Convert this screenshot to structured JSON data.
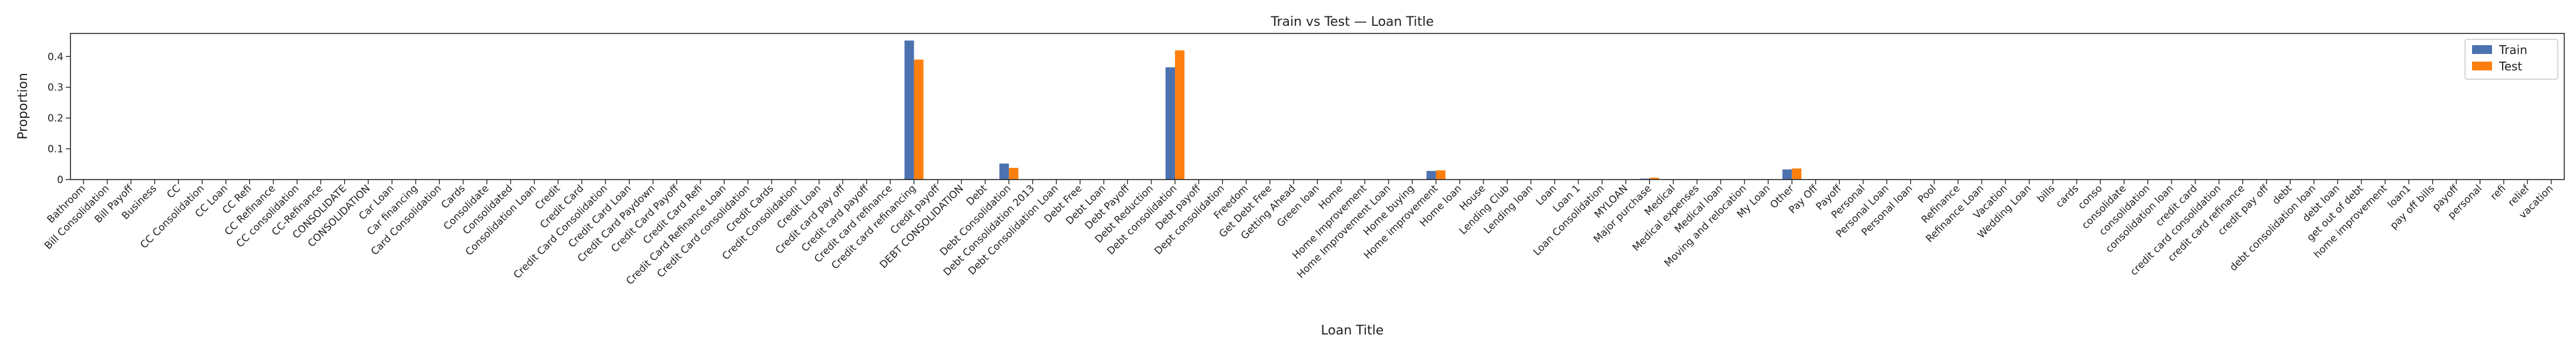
{
  "chart_data": {
    "type": "bar",
    "title": "Train vs Test — Loan Title",
    "xlabel": "Loan Title",
    "ylabel": "Proportion",
    "ylim": [
      0,
      0.475
    ],
    "yticks": [
      0.0,
      0.1,
      0.2,
      0.3,
      0.4
    ],
    "grid": false,
    "legend_position": "top-right",
    "colors": {
      "Train": "#4c72b0",
      "Test": "#ff7f0e",
      "axis": "#222222"
    },
    "categories": [
      "Bathroom",
      "Bill Consolidation",
      "Bill Payoff",
      "Business",
      "CC",
      "CC Consolidation",
      "CC Loan",
      "CC Refi",
      "CC Refinance",
      "CC consolidation",
      "CC-Refinance",
      "CONSOLIDATE",
      "CONSOLIDATION",
      "Car Loan",
      "Car financing",
      "Card Consolidation",
      "Cards",
      "Consolidate",
      "Consolidated",
      "Consolidation Loan",
      "Credit",
      "Credit Card",
      "Credit Card Consolidation",
      "Credit Card Loan",
      "Credit Card Paydown",
      "Credit Card Payoff",
      "Credit Card Refi",
      "Credit Card Refinance Loan",
      "Credit Card consolidation",
      "Credit Cards",
      "Credit Consolidation",
      "Credit Loan",
      "Credit card pay off",
      "Credit card payoff",
      "Credit card refinance",
      "Credit card refinancing",
      "Credit payoff",
      "DEBT CONSOLIDATION",
      "Debt",
      "Debt Consolidation",
      "Debt Consolidation 2013",
      "Debt Consolidation Loan",
      "Debt Free",
      "Debt Loan",
      "Debt Payoff",
      "Debt Reduction",
      "Debt consolidation",
      "Debt payoff",
      "Dept consolidation",
      "Freedom",
      "Get Debt Free",
      "Getting Ahead",
      "Green loan",
      "Home",
      "Home Improvement",
      "Home Improvement Loan",
      "Home buying",
      "Home improvement",
      "Home loan",
      "House",
      "Lending Club",
      "Lending loan",
      "Loan",
      "Loan 1",
      "Loan Consolidation",
      "MYLOAN",
      "Major purchase",
      "Medical",
      "Medical expenses",
      "Medical loan",
      "Moving and relocation",
      "My Loan",
      "Other",
      "Pay Off",
      "Payoff",
      "Personal",
      "Personal Loan",
      "Personal loan",
      "Pool",
      "Refinance",
      "Refinance Loan",
      "Vacation",
      "Wedding Loan",
      "bills",
      "cards",
      "conso",
      "consolidate",
      "consolidation",
      "consolidation loan",
      "credit card",
      "credit card consolidation",
      "credit card refinance",
      "credit pay off",
      "debt",
      "debt consolidation loan",
      "debt loan",
      "get out of debt",
      "home improvement",
      "loan1",
      "pay off bills",
      "payoff",
      "personal",
      "refi",
      "relief",
      "vacation"
    ],
    "series": [
      {
        "name": "Train",
        "values": [
          0,
          0,
          0,
          0,
          0,
          0,
          0,
          0,
          0,
          0,
          0,
          0,
          0,
          0,
          0,
          0,
          0,
          0,
          0,
          0,
          0,
          0,
          0,
          0,
          0,
          0,
          0,
          0,
          0,
          0,
          0,
          0,
          0,
          0,
          0,
          0.452,
          0,
          0,
          0,
          0.052,
          0,
          0,
          0,
          0,
          0,
          0,
          0.365,
          0,
          0,
          0,
          0,
          0,
          0,
          0,
          0,
          0,
          0,
          0.028,
          0,
          0,
          0,
          0,
          0,
          0,
          0,
          0,
          0.003,
          0,
          0,
          0,
          0,
          0,
          0.033,
          0,
          0,
          0,
          0,
          0,
          0,
          0,
          0,
          0,
          0,
          0,
          0,
          0,
          0,
          0,
          0,
          0,
          0,
          0,
          0,
          0,
          0,
          0,
          0,
          0,
          0,
          0,
          0,
          0,
          0,
          0,
          0
        ]
      },
      {
        "name": "Test",
        "values": [
          0,
          0,
          0,
          0,
          0,
          0,
          0,
          0,
          0,
          0,
          0,
          0,
          0,
          0,
          0,
          0,
          0,
          0,
          0,
          0,
          0,
          0,
          0,
          0,
          0,
          0,
          0,
          0,
          0,
          0,
          0,
          0,
          0,
          0,
          0,
          0.39,
          0,
          0,
          0,
          0.038,
          0,
          0,
          0,
          0,
          0,
          0,
          0.42,
          0,
          0,
          0,
          0,
          0,
          0,
          0,
          0,
          0,
          0,
          0.03,
          0,
          0,
          0,
          0,
          0,
          0,
          0,
          0,
          0.006,
          0,
          0,
          0,
          0,
          0,
          0.036,
          0,
          0,
          0,
          0,
          0,
          0,
          0,
          0,
          0,
          0,
          0,
          0,
          0,
          0,
          0,
          0,
          0,
          0,
          0,
          0,
          0,
          0,
          0,
          0,
          0,
          0,
          0,
          0,
          0,
          0,
          0,
          0
        ]
      }
    ]
  }
}
